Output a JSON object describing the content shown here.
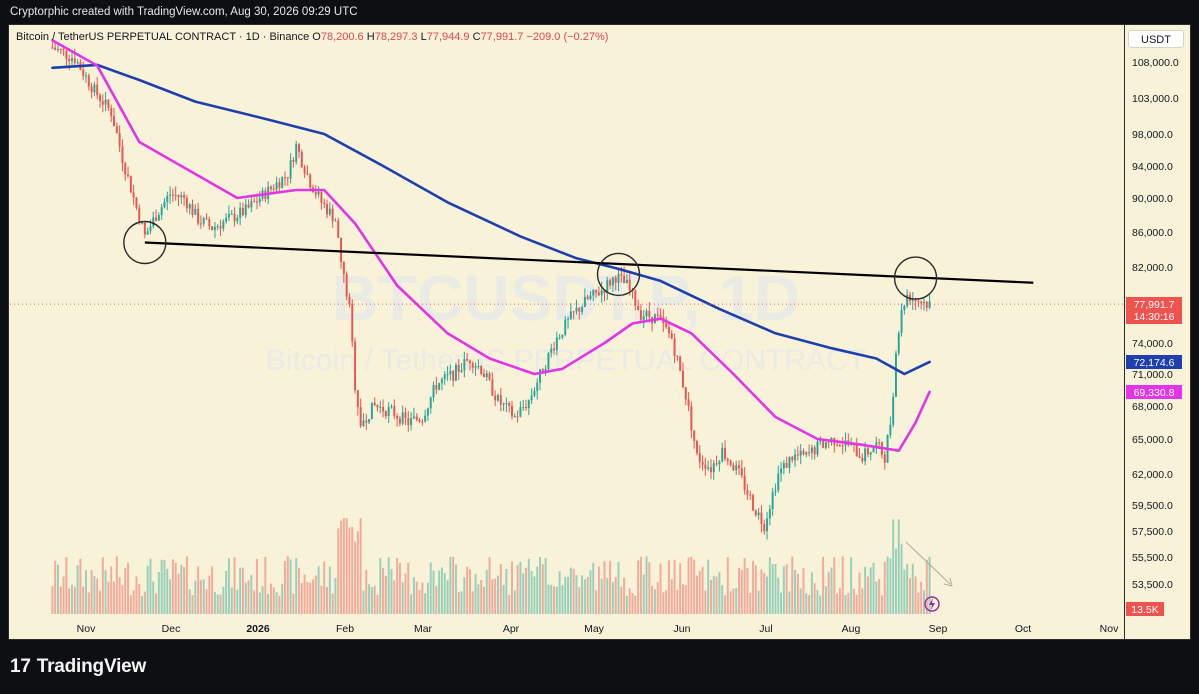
{
  "header": {
    "attribution": "Cryptorphic created with TradingView.com, Aug 30, 2026 09:29 UTC"
  },
  "legend": {
    "symbol_line": "Bitcoin / TetherUS PERPETUAL CONTRACT · 1D · Binance",
    "open_label": "O",
    "open": "78,200.6",
    "high_label": "H",
    "high": "78,297.3",
    "low_label": "L",
    "low": "77,944.9",
    "close_label": "C",
    "close": "77,991.7",
    "change": "−209.0 (−0.27%)"
  },
  "watermark": {
    "ticker": "BTCUSDT.P, 1D",
    "name": "Bitcoin / TetherUS PERPETUAL CONTRACT"
  },
  "price_axis": {
    "currency": "USDT",
    "last_price": "77,991.7",
    "countdown": "14:30:16",
    "ma_slow_value": "72,174.6",
    "ma_fast_value": "69,330.8",
    "volume_value": "13.5K"
  },
  "colors": {
    "background": "#f7f2d8",
    "up": "#26a69a",
    "down": "#ef5350",
    "ma_slow": "#1f3fae",
    "ma_fast": "#e135e6",
    "trendline": "#000000",
    "last_price": "#ef5350"
  },
  "footer": {
    "brand": "TradingView",
    "logo_icon": "tradingview-logo-icon"
  },
  "chart_data": {
    "type": "candlestick",
    "x_ticks": [
      "Nov",
      "Dec",
      "2026",
      "Feb",
      "Mar",
      "Apr",
      "May",
      "Jun",
      "Jul",
      "Aug",
      "Sep",
      "Oct",
      "Nov"
    ],
    "y_ticks": [
      53500,
      55500,
      57500,
      59500,
      62000,
      65000,
      68000,
      71000,
      74000,
      78000,
      82000,
      86000,
      90000,
      94000,
      98000,
      103000,
      108000
    ],
    "y_tick_labels": [
      "53,500.0",
      "55,500.0",
      "57,500.0",
      "59,500.0",
      "62,000.0",
      "65,000.0",
      "68,000.0",
      "71,000.0",
      "74,000.0",
      "78,000.0",
      "82,000.0",
      "86,000.0",
      "90,000.0",
      "94,000.0",
      "98,000.0",
      "103,000.0",
      "108,000.0"
    ],
    "close_keypoints": [
      [
        "Oct 20",
        110000
      ],
      [
        "Oct 28",
        108500
      ],
      [
        "Nov 4",
        104000
      ],
      [
        "Nov 10",
        101000
      ],
      [
        "Nov 14",
        95000
      ],
      [
        "Nov 18",
        90000
      ],
      [
        "Nov 22",
        85500
      ],
      [
        "Nov 26",
        88000
      ],
      [
        "Dec 1",
        90500
      ],
      [
        "Dec 6",
        90000
      ],
      [
        "Dec 11",
        87500
      ],
      [
        "Dec 16",
        86500
      ],
      [
        "Dec 22",
        87500
      ],
      [
        "Dec 28",
        88500
      ],
      [
        "Jan 2",
        90000
      ],
      [
        "Jan 7",
        91500
      ],
      [
        "Jan 12",
        93000
      ],
      [
        "Jan 15",
        96500
      ],
      [
        "Jan 20",
        92000
      ],
      [
        "Jan 24",
        89500
      ],
      [
        "Jan 29",
        87500
      ],
      [
        "Jan 31",
        82500
      ],
      [
        "Feb 3",
        77500
      ],
      [
        "Feb 5",
        70000
      ],
      [
        "Feb 7",
        66500
      ],
      [
        "Feb 12",
        68000
      ],
      [
        "Feb 18",
        67500
      ],
      [
        "Feb 24",
        66500
      ],
      [
        "Mar 1",
        67000
      ],
      [
        "Mar 6",
        70000
      ],
      [
        "Mar 12",
        71000
      ],
      [
        "Mar 18",
        72500
      ],
      [
        "Mar 22",
        71500
      ],
      [
        "Mar 28",
        68500
      ],
      [
        "Apr 3",
        67000
      ],
      [
        "Apr 8",
        68500
      ],
      [
        "Apr 13",
        71500
      ],
      [
        "Apr 18",
        74500
      ],
      [
        "Apr 24",
        77000
      ],
      [
        "Apr 29",
        78500
      ],
      [
        "May 4",
        79500
      ],
      [
        "May 9",
        81000
      ],
      [
        "May 13",
        80000
      ],
      [
        "May 18",
        77000
      ],
      [
        "May 24",
        76500
      ],
      [
        "May 29",
        74500
      ],
      [
        "Jun 3",
        69000
      ],
      [
        "Jun 7",
        63500
      ],
      [
        "Jun 12",
        62500
      ],
      [
        "Jun 16",
        64000
      ],
      [
        "Jun 22",
        62000
      ],
      [
        "Jun 27",
        59500
      ],
      [
        "Jul 1",
        58000
      ],
      [
        "Jul 6",
        62000
      ],
      [
        "Jul 11",
        63500
      ],
      [
        "Jul 16",
        63500
      ],
      [
        "Jul 21",
        64500
      ],
      [
        "Jul 26",
        65000
      ],
      [
        "Jul 31",
        64500
      ],
      [
        "Aug 5",
        63500
      ],
      [
        "Aug 10",
        64500
      ],
      [
        "Aug 13",
        63500
      ],
      [
        "Aug 15",
        66500
      ],
      [
        "Aug 17",
        72500
      ],
      [
        "Aug 19",
        77500
      ],
      [
        "Aug 21",
        79000
      ],
      [
        "Aug 24",
        78500
      ],
      [
        "Aug 27",
        78200
      ],
      [
        "Aug 29",
        77991.7
      ]
    ],
    "ma_slow": [
      [
        "Oct 20",
        107200
      ],
      [
        "Nov 5",
        107600
      ],
      [
        "Nov 20",
        105500
      ],
      [
        "Dec 10",
        102500
      ],
      [
        "Jan 5",
        100000
      ],
      [
        "Jan 25",
        98000
      ],
      [
        "Feb 15",
        94000
      ],
      [
        "Mar 10",
        89500
      ],
      [
        "Apr 5",
        85500
      ],
      [
        "Apr 25",
        83000
      ],
      [
        "May 10",
        81800
      ],
      [
        "May 25",
        80500
      ],
      [
        "Jun 15",
        77500
      ],
      [
        "Jul 5",
        75000
      ],
      [
        "Jul 25",
        73500
      ],
      [
        "Aug 10",
        72500
      ],
      [
        "Aug 20",
        71000
      ],
      [
        "Aug 29",
        72174.6
      ]
    ],
    "ma_fast": [
      [
        "Oct 20",
        111000
      ],
      [
        "Nov 5",
        107500
      ],
      [
        "Nov 20",
        97000
      ],
      [
        "Dec 10",
        93000
      ],
      [
        "Dec 25",
        90000
      ],
      [
        "Jan 15",
        91000
      ],
      [
        "Jan 25",
        91000
      ],
      [
        "Feb 5",
        87000
      ],
      [
        "Feb 20",
        80000
      ],
      [
        "Mar 10",
        75000
      ],
      [
        "Mar 25",
        72500
      ],
      [
        "Apr 10",
        71000
      ],
      [
        "Apr 20",
        71500
      ],
      [
        "May 5",
        74000
      ],
      [
        "May 15",
        76000
      ],
      [
        "May 25",
        76500
      ],
      [
        "Jun 5",
        75000
      ],
      [
        "Jun 20",
        71000
      ],
      [
        "Jul 5",
        67000
      ],
      [
        "Jul 20",
        65000
      ],
      [
        "Aug 5",
        64500
      ],
      [
        "Aug 18",
        64000
      ],
      [
        "Aug 24",
        66500
      ],
      [
        "Aug 29",
        69330.8
      ]
    ],
    "trendline": [
      [
        "Nov 22",
        84800
      ],
      [
        "Oct 5",
        80300
      ]
    ],
    "circles": [
      [
        "Nov 22",
        84800
      ],
      [
        "May 10",
        81200
      ],
      [
        "Aug 24",
        80800
      ]
    ],
    "last_price": 77991.7
  }
}
